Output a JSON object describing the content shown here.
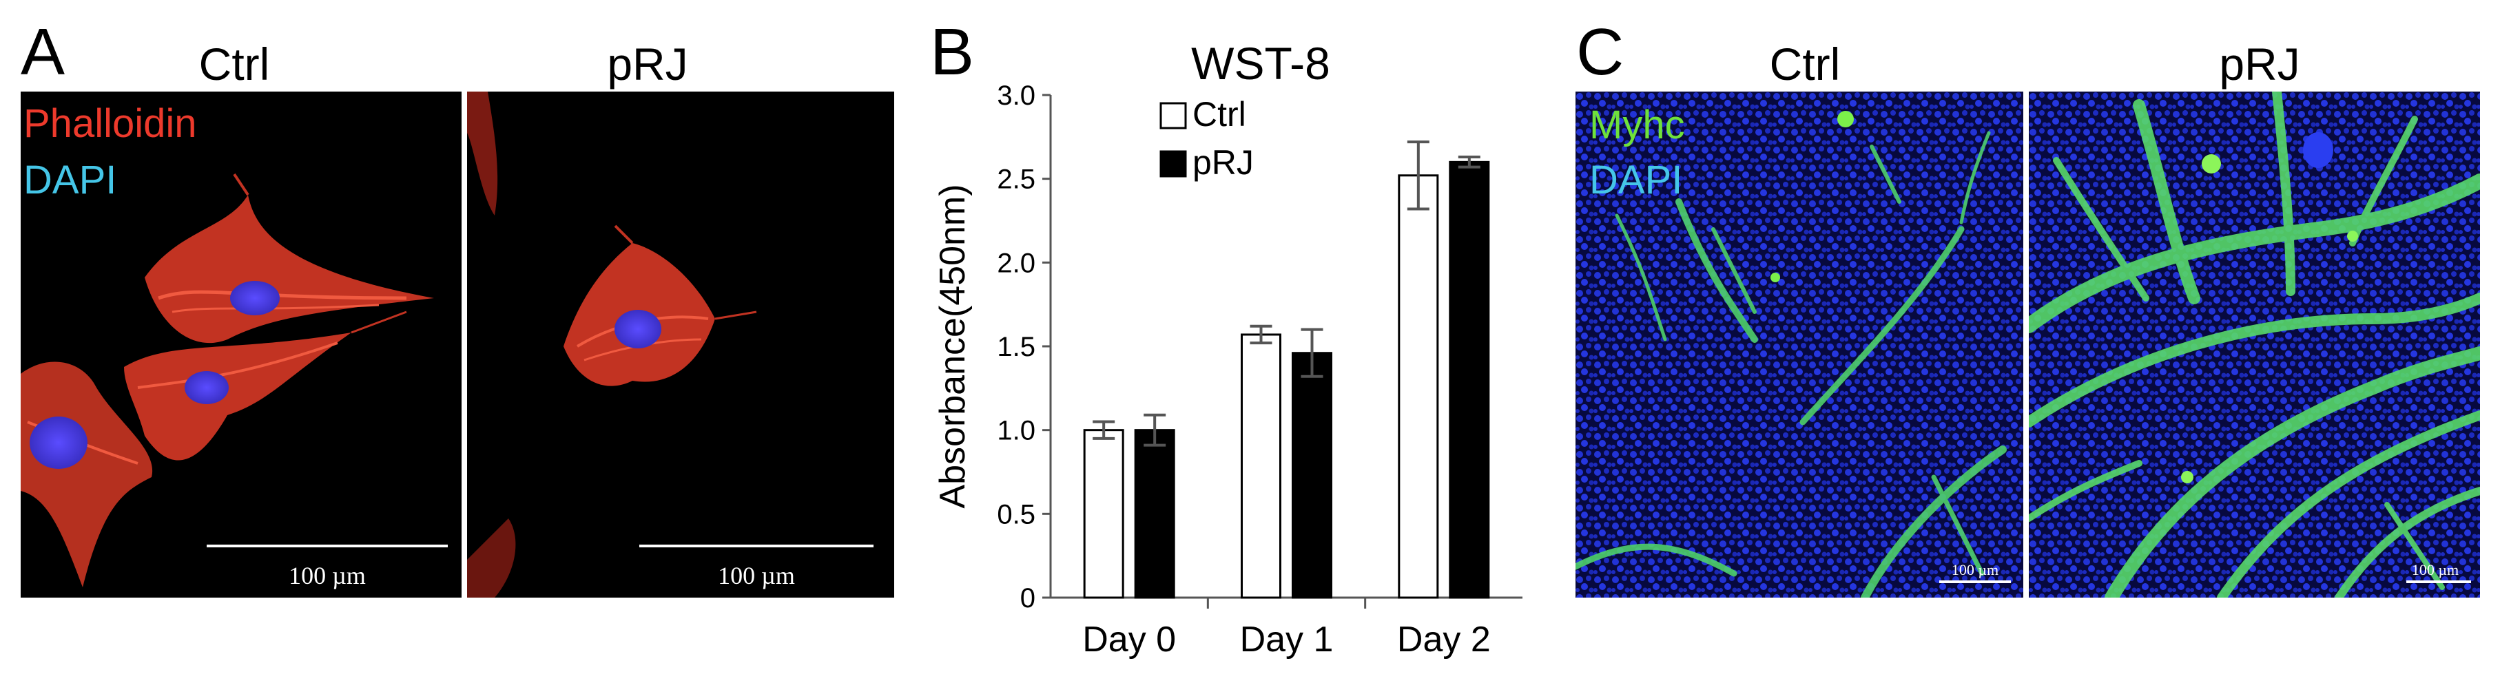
{
  "panel_a": {
    "letter": "A",
    "columns": [
      "Ctrl",
      "pRJ"
    ],
    "stains": [
      "Phalloidin",
      "DAPI"
    ],
    "scale_label": "100 µm",
    "colors": {
      "phalloidin": "#ee3a2c",
      "dapi": "#45c6e8"
    }
  },
  "panel_b": {
    "letter": "B",
    "chart_data": {
      "type": "bar",
      "title": "WST-8",
      "ylabel": "Absorbance(450nm)",
      "xlabel": "",
      "categories": [
        "Day 0",
        "Day 1",
        "Day 2"
      ],
      "ylim": [
        0,
        3.0
      ],
      "yticks": [
        "0",
        "0.5",
        "1.0",
        "1.5",
        "2.0",
        "2.5",
        "3.0"
      ],
      "grid": false,
      "legend": "top-left",
      "series": [
        {
          "name": "Ctrl",
          "values": [
            1.0,
            1.57,
            2.52
          ],
          "errors": [
            0.05,
            0.05,
            0.2
          ],
          "fill": "#ffffff"
        },
        {
          "name": "pRJ",
          "values": [
            1.0,
            1.46,
            2.6
          ],
          "errors": [
            0.09,
            0.14,
            0.03
          ],
          "fill": "#000000"
        }
      ]
    }
  },
  "panel_c": {
    "letter": "C",
    "columns": [
      "Ctrl",
      "pRJ"
    ],
    "stains": [
      "Myhc",
      "DAPI"
    ],
    "scale_label": "100 µm",
    "colors": {
      "myhc": "#6fe23a",
      "dapi": "#45c6e8"
    }
  }
}
